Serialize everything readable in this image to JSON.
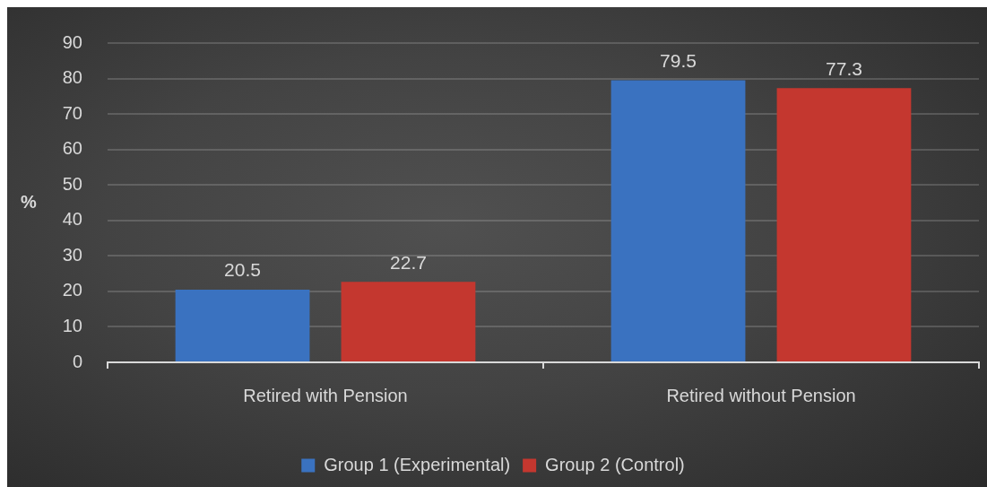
{
  "chart_data": {
    "type": "bar",
    "ylabel": "%",
    "categories": [
      "Retired with Pension",
      "Retired without Pension"
    ],
    "series": [
      {
        "name": "Group 1 (Experimental)",
        "color": "#3a72c0",
        "values": [
          20.5,
          79.5
        ]
      },
      {
        "name": "Group 2 (Control)",
        "color": "#c4372f",
        "values": [
          22.7,
          77.3
        ]
      }
    ],
    "ylim": [
      0,
      90
    ],
    "yticks": [
      0,
      10,
      20,
      30,
      40,
      50,
      60,
      70,
      80,
      90
    ],
    "grid": "y",
    "legend": "bottom",
    "data_labels": true
  }
}
